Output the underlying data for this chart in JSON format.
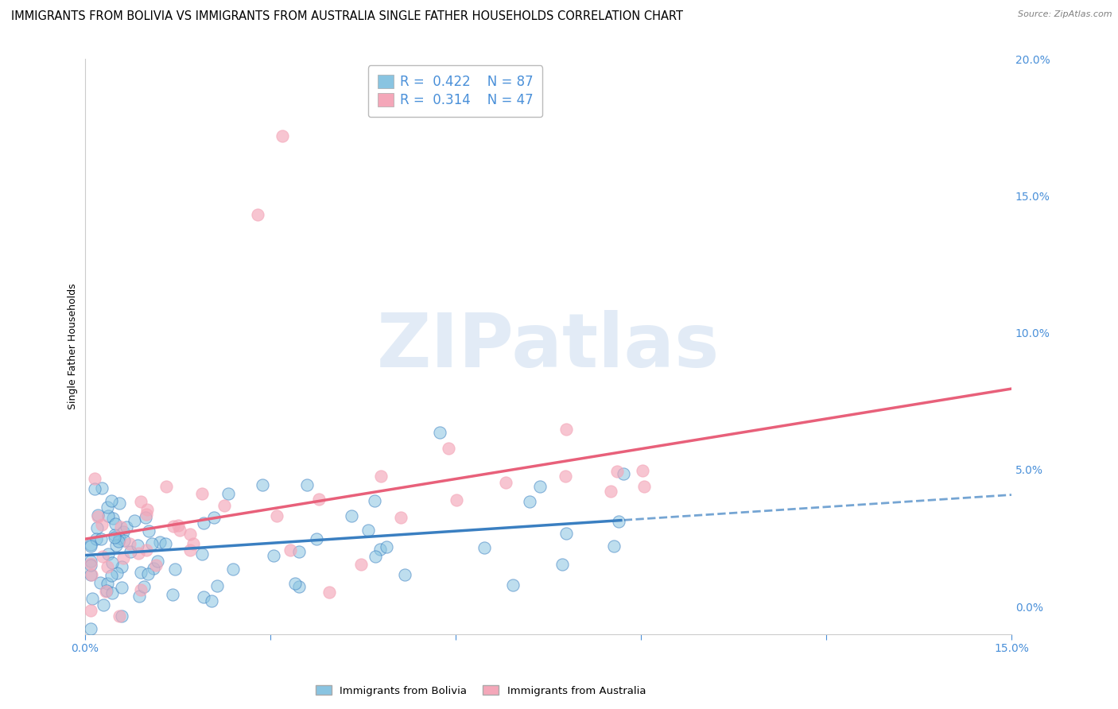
{
  "title": "IMMIGRANTS FROM BOLIVIA VS IMMIGRANTS FROM AUSTRALIA SINGLE FATHER HOUSEHOLDS CORRELATION CHART",
  "source": "Source: ZipAtlas.com",
  "ylabel": "Single Father Households",
  "bolivia_color": "#89c4e1",
  "australia_color": "#f4a7b9",
  "bolivia_line_color": "#3a7fc1",
  "australia_line_color": "#e8607a",
  "bolivia_R": 0.422,
  "bolivia_N": 87,
  "australia_R": 0.314,
  "australia_N": 47,
  "xlim": [
    0.0,
    0.15
  ],
  "ylim": [
    -0.01,
    0.2
  ],
  "background_color": "#ffffff",
  "grid_color": "#cccccc",
  "tick_color": "#4a90d9",
  "title_fontsize": 10.5,
  "axis_label_fontsize": 9,
  "tick_fontsize": 10,
  "legend_fontsize": 12,
  "watermark_color": "#d0dff0",
  "watermark_alpha": 0.6
}
